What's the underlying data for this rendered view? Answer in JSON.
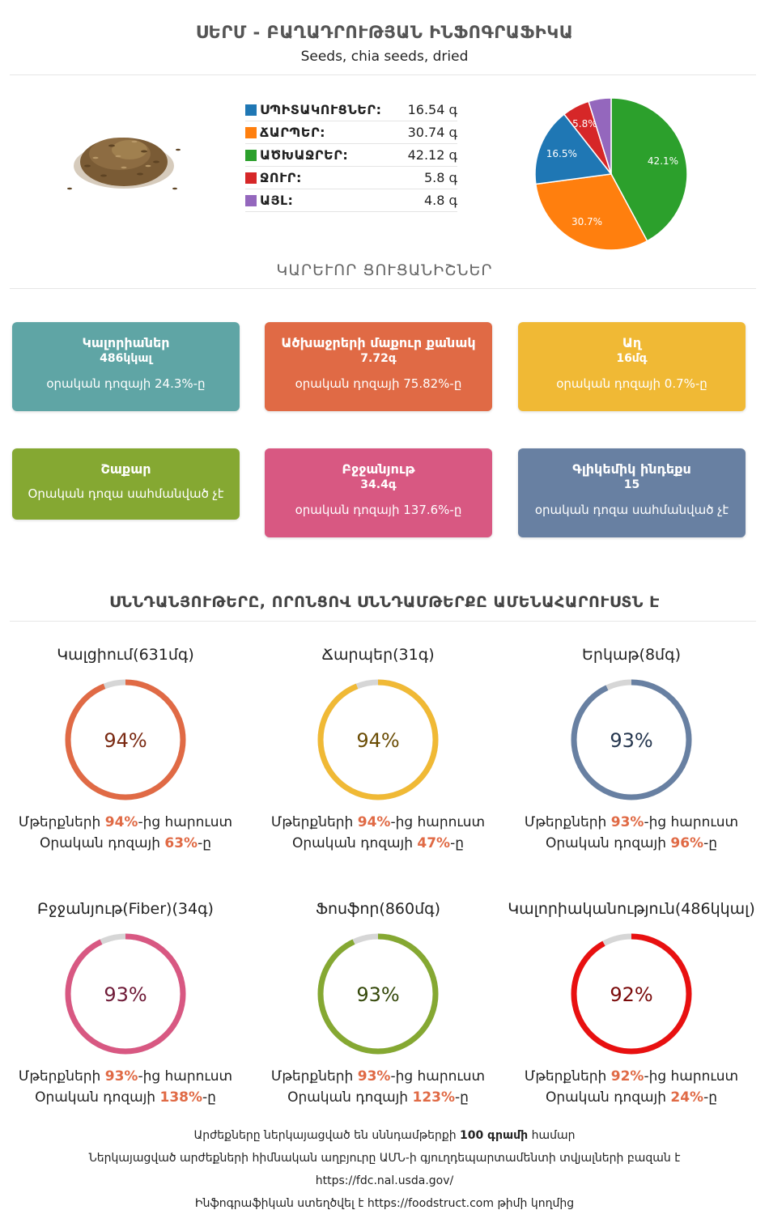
{
  "header": {
    "title": "ՍԵՐՄ - ԲԱՂԱԴՐՈՒԹՅԱՆ ԻՆՖՈԳՐԱՖԻԿԱ",
    "subtitle": "Seeds, chia seeds, dried"
  },
  "macros": [
    {
      "name": "ՍՊԻՏԱԿՈՒՑՆԵՐ:",
      "value": "16.54 գ",
      "color": "#1f77b4"
    },
    {
      "name": "ՃԱՐՊԵՐ:",
      "value": "30.74 գ",
      "color": "#ff7f0e"
    },
    {
      "name": "ԱԾԽԱՋՐԵՐ:",
      "value": "42.12 գ",
      "color": "#2ca02c"
    },
    {
      "name": "ՋՈՒՐ:",
      "value": "5.8 գ",
      "color": "#d62728"
    },
    {
      "name": "ԱՅԼ:",
      "value": "4.8 գ",
      "color": "#9467bd"
    }
  ],
  "chart_data": {
    "type": "pie",
    "slices": [
      {
        "label": "42.1%",
        "value": 42.1,
        "color": "#2ca02c"
      },
      {
        "label": "30.7%",
        "value": 30.7,
        "color": "#ff7f0e"
      },
      {
        "label": "16.5%",
        "value": 16.5,
        "color": "#1f77b4"
      },
      {
        "label": "5.8%",
        "value": 5.8,
        "color": "#d62728"
      },
      {
        "label": "",
        "value": 4.8,
        "color": "#9467bd"
      }
    ]
  },
  "section1_title": "ԿԱՐԵՒՈՐ ՑՈՒՑԱՆԻՇՆԵՐ",
  "cards": [
    {
      "title": "Կալորիաներ",
      "value": "486կկալ",
      "daily": "օրական դոզայի 24.3%-ը",
      "color": "#5fa5a5"
    },
    {
      "title": "Ածխաջրերի մաքուր քանակ",
      "value": "7.72գ",
      "daily": "օրական դոզայի 75.82%-ը",
      "color": "#e06a45"
    },
    {
      "title": "Աղ",
      "value": "16մգ",
      "daily": "օրական դոզայի 0.7%-ը",
      "color": "#f0b935"
    },
    {
      "title": "Շաքար",
      "value": "",
      "daily": "Օրական դոզա սահմանված չէ",
      "color": "#85a832"
    },
    {
      "title": "Բջջանյութ",
      "value": "34.4գ",
      "daily": "օրական դոզայի 137.6%-ը",
      "color": "#d85882"
    },
    {
      "title": "Գլիկեմիկ ինդեքս",
      "value": "15",
      "daily": "օրական դոզա սահմանված չէ",
      "color": "#6880a2"
    }
  ],
  "section2_title": "ՍՆՆԴԱՆՅՈՒԹԵՐԸ, ՈՐՈՆՑՈՎ ՍՆՆԴԱՄԹԵՐՔԸ ԱՄԵՆԱՀԱՐՈՒՍՏՆ Է",
  "rings": [
    {
      "title": "Կալցիում(631մգ)",
      "percent": 94,
      "label": "94%",
      "richer_pre": "Մթերքների ",
      "richer": "94%",
      "richer_post": "-ից հարուստ",
      "daily_pre": "Օրական դոզայի ",
      "daily": "63%",
      "daily_post": "-ը",
      "color": "#e06a45",
      "text_color": "#7a2a12"
    },
    {
      "title": "Ճարպեր(31գ)",
      "percent": 94,
      "label": "94%",
      "richer_pre": "Մթերքների ",
      "richer": "94%",
      "richer_post": "-ից հարուստ",
      "daily_pre": "Օրական դոզայի ",
      "daily": "47%",
      "daily_post": "-ը",
      "color": "#f0b935",
      "text_color": "#6b4d05"
    },
    {
      "title": "Երկաթ(8մգ)",
      "percent": 93,
      "label": "93%",
      "richer_pre": "Մթերքների ",
      "richer": "93%",
      "richer_post": "-ից հարուստ",
      "daily_pre": "Օրական դոզայի ",
      "daily": "96%",
      "daily_post": "-ը",
      "color": "#6880a2",
      "text_color": "#26374f"
    },
    {
      "title": "Բջջանյութ(Fiber)(34գ)",
      "percent": 93,
      "label": "93%",
      "richer_pre": "Մթերքների ",
      "richer": "93%",
      "richer_post": "-ից հարուստ",
      "daily_pre": "Օրական դոզայի ",
      "daily": "138%",
      "daily_post": "-ը",
      "color": "#d85882",
      "text_color": "#6e1a37"
    },
    {
      "title": "Ֆոսֆոր(860մգ)",
      "percent": 93,
      "label": "93%",
      "richer_pre": "Մթերքների ",
      "richer": "93%",
      "richer_post": "-ից հարուստ",
      "daily_pre": "Օրական դոզայի ",
      "daily": "123%",
      "daily_post": "-ը",
      "color": "#85a832",
      "text_color": "#34480a"
    },
    {
      "title": "Կալորիականություն(486կկալ)",
      "percent": 92,
      "label": "92%",
      "richer_pre": "Մթերքների ",
      "richer": "92%",
      "richer_post": "-ից հարուստ",
      "daily_pre": "Օրական դոզայի ",
      "daily": "24%",
      "daily_post": "-ը",
      "color": "#e81010",
      "text_color": "#7a0a0a"
    }
  ],
  "footer": {
    "line1_pre": "Արժեքները ներկայացված են սննդամթերքի ",
    "line1_bold": "100 գրամի",
    "line1_post": " համար",
    "line2": "Ներկայացված արժեքների հիմնական աղբյուրը ԱՄՆ-ի գյուղդեպարտամենտի տվյալների բազան է",
    "line3": "https://fdc.nal.usda.gov/",
    "line4_pre": "Ինֆոգրաֆիկան ստեղծվել է ",
    "line4_link": "https://foodstruct.com",
    "line4_post": " թիմի կողմից"
  }
}
